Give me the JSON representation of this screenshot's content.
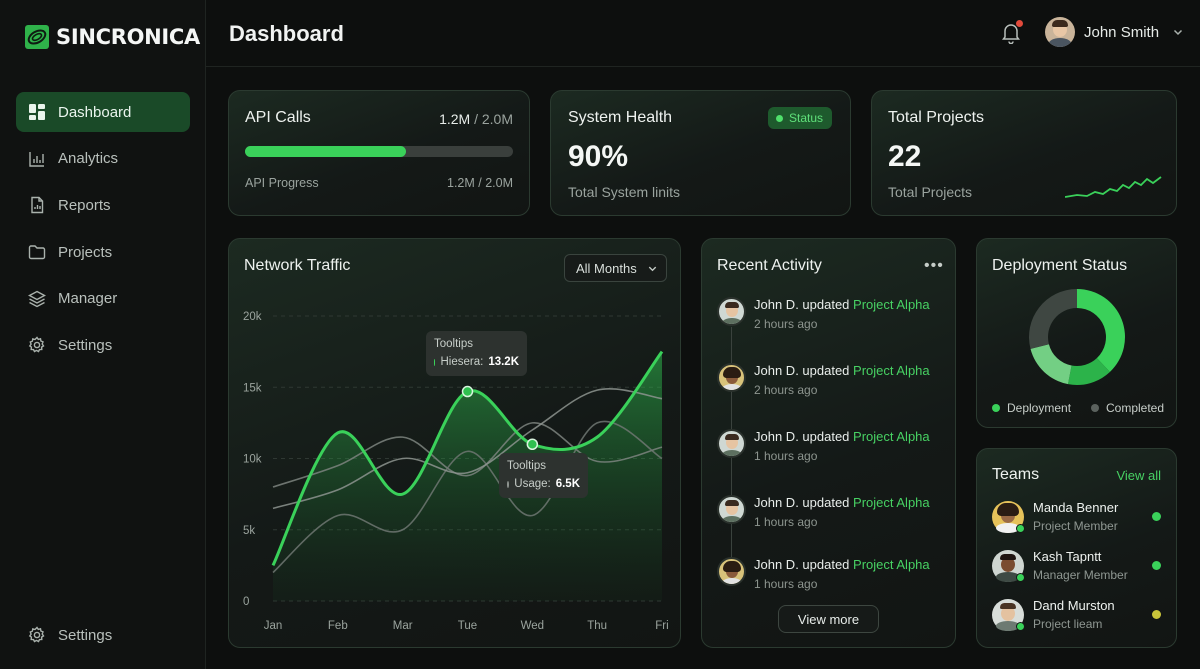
{
  "app": {
    "brand": "SINCRONICA"
  },
  "header": {
    "title": "Dashboard",
    "user_name": "John Smith"
  },
  "sidebar": {
    "items": [
      {
        "label": "Dashboard",
        "icon": "grid-icon",
        "active": true
      },
      {
        "label": "Analytics",
        "icon": "bar-chart-icon"
      },
      {
        "label": "Reports",
        "icon": "report-icon"
      },
      {
        "label": "Projects",
        "icon": "folder-icon"
      },
      {
        "label": "Manager",
        "icon": "layers-icon"
      },
      {
        "label": "Settings",
        "icon": "gear-icon"
      }
    ],
    "bottom": {
      "label": "Settings",
      "icon": "gear-icon"
    }
  },
  "cards": {
    "api": {
      "title": "API Calls",
      "value": "1.2M",
      "separator": " / ",
      "max": "2.0M",
      "progress_label": "API Progress",
      "progress_text": "1.2M / 2.0M",
      "progress": 0.6
    },
    "health": {
      "title": "System Health",
      "status": "Status",
      "value": "90%",
      "subtitle": "Total System linits"
    },
    "projects": {
      "title": "Total Projects",
      "value": "22",
      "subtitle": "Total Projects"
    }
  },
  "traffic": {
    "title": "Network Traffic",
    "dropdown": "All Months",
    "tooltip1": {
      "title": "Tooltips",
      "label": "Hiesera:",
      "value": "13.2K"
    },
    "tooltip2": {
      "title": "Tooltips",
      "label": "Usage:",
      "value": "6.5K"
    }
  },
  "chart_data": {
    "type": "area",
    "categories": [
      "Jan",
      "Feb",
      "Mar",
      "Tue",
      "Wed",
      "Thu",
      "Fri"
    ],
    "yticks": [
      "0",
      "5k",
      "10k",
      "15k",
      "20k"
    ],
    "ylim": [
      0,
      20000
    ],
    "grid": true,
    "series": [
      {
        "values": [
          2500,
          11800,
          7500,
          14700,
          11000,
          11500,
          17500
        ],
        "color": "#3ad15a"
      },
      {
        "values": [
          6500,
          7800,
          10000,
          9000,
          12000,
          14800,
          14200
        ],
        "color": "#8d948f"
      },
      {
        "values": [
          2000,
          6000,
          5000,
          10500,
          6000,
          12500,
          10000
        ],
        "color": "#6f7772"
      },
      {
        "values": [
          8000,
          9500,
          11500,
          8800,
          12500,
          9800,
          10800
        ],
        "color": "#7c847f"
      }
    ]
  },
  "activity": {
    "title": "Recent Activity",
    "items": [
      {
        "who": "John D. updated ",
        "project": "Project Alpha",
        "time": "2 hours ago"
      },
      {
        "who": "John D. updated ",
        "project": "Project Alpha",
        "time": "2 hours ago"
      },
      {
        "who": "John D. updated ",
        "project": "Project Alpha",
        "time": "1 hours ago"
      },
      {
        "who": "John D. updated ",
        "project": "Project Alpha",
        "time": "1 hours ago"
      },
      {
        "who": "John D. updated ",
        "project": "Project Alpha",
        "time": "1 hours ago"
      }
    ],
    "view_more": "View more"
  },
  "deployment": {
    "title": "Deployment Status",
    "legend": [
      {
        "label": "Deployment",
        "color": "#3ad15a"
      },
      {
        "label": "Completed",
        "color": "#5b625e"
      }
    ],
    "segments": [
      {
        "value": 38,
        "color": "#3ad15a"
      },
      {
        "value": 15,
        "color": "#2cb34a"
      },
      {
        "value": 18,
        "color": "#73cf84"
      },
      {
        "value": 29,
        "color": "#3f4742"
      }
    ]
  },
  "teams": {
    "title": "Teams",
    "view_all": "View all",
    "members": [
      {
        "name": "Manda Benner",
        "role": "Project Member",
        "status_color": "#3ad15a"
      },
      {
        "name": "Kash Tapntt",
        "role": "Manager Member",
        "status_color": "#3ad15a"
      },
      {
        "name": "Dand Murston",
        "role": "Project lieam",
        "status_color": "#c9c53a"
      }
    ]
  }
}
